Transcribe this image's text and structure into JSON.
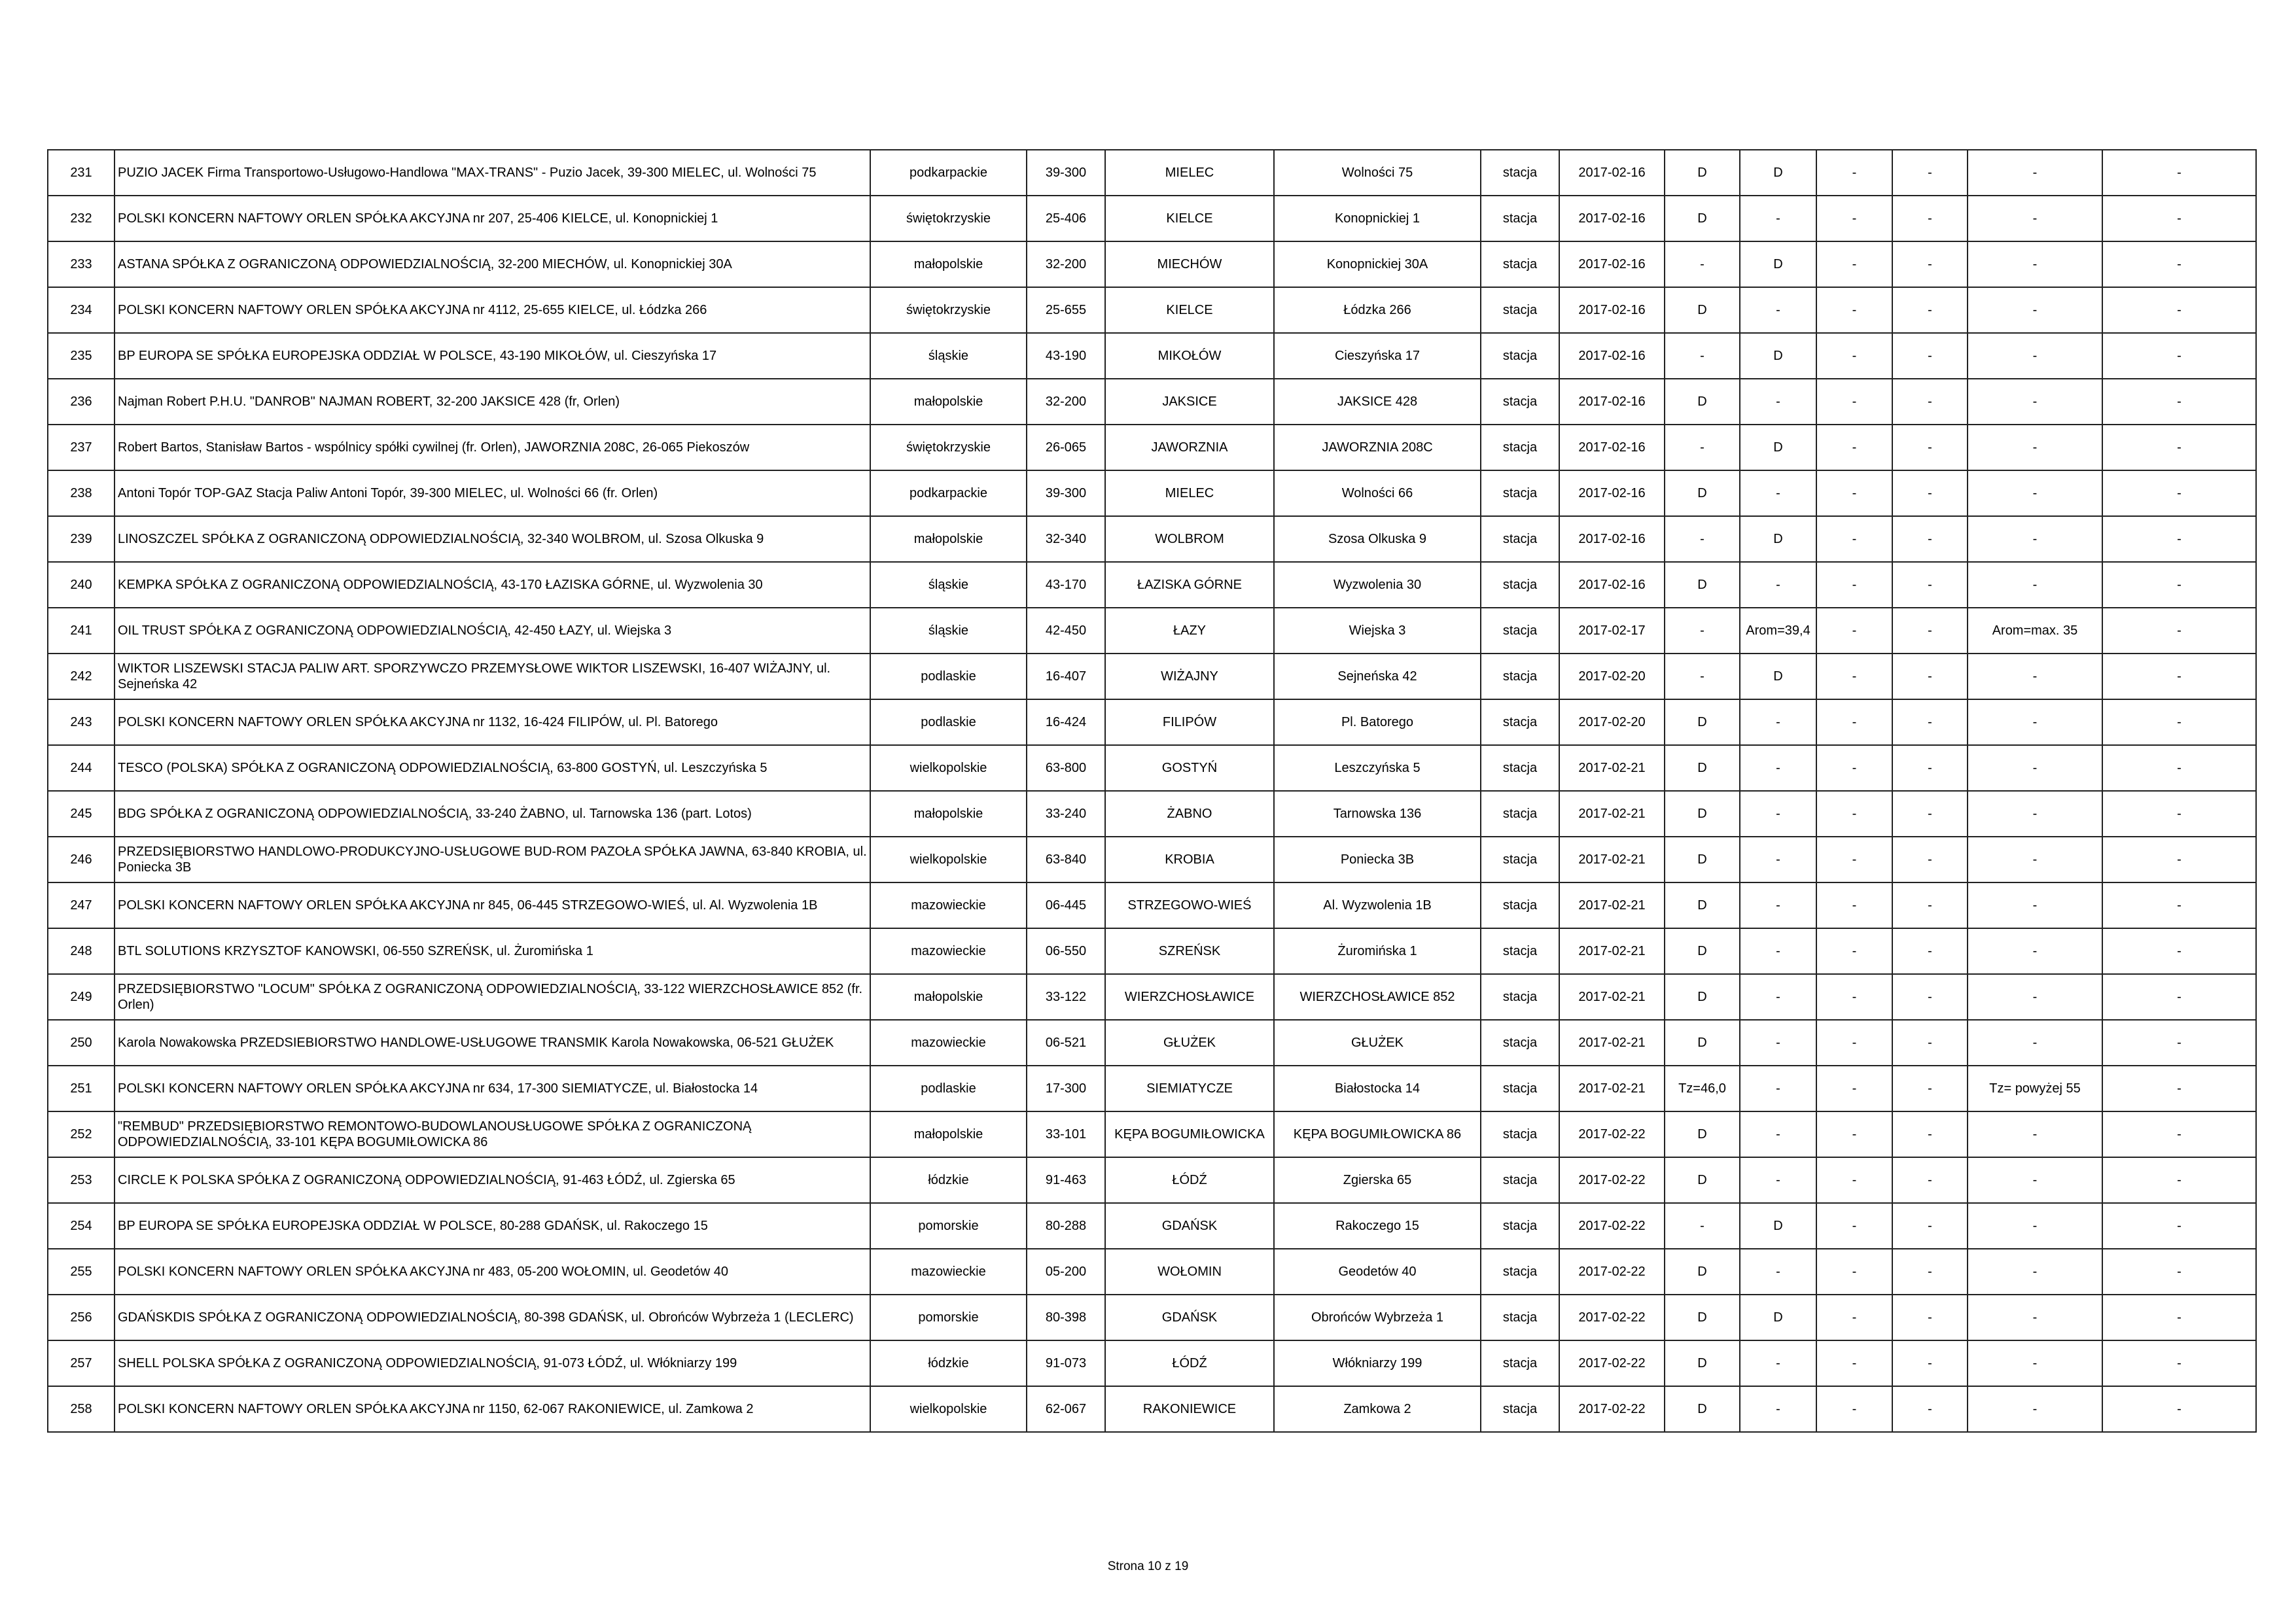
{
  "table": {
    "rows": [
      [
        "231",
        "PUZIO JACEK Firma Transportowo-Usługowo-Handlowa \"MAX-TRANS\" - Puzio Jacek, 39-300 MIELEC, ul. Wolności 75",
        "podkarpackie",
        "39-300",
        "MIELEC",
        "Wolności 75",
        "stacja",
        "2017-02-16",
        "D",
        "D",
        "-",
        "-",
        "-",
        "-"
      ],
      [
        "232",
        "POLSKI KONCERN NAFTOWY ORLEN SPÓŁKA AKCYJNA nr 207, 25-406 KIELCE, ul. Konopnickiej 1",
        "świętokrzyskie",
        "25-406",
        "KIELCE",
        "Konopnickiej 1",
        "stacja",
        "2017-02-16",
        "D",
        "-",
        "-",
        "-",
        "-",
        "-"
      ],
      [
        "233",
        "ASTANA SPÓŁKA Z OGRANICZONĄ ODPOWIEDZIALNOŚCIĄ, 32-200 MIECHÓW, ul. Konopnickiej 30A",
        "małopolskie",
        "32-200",
        "MIECHÓW",
        "Konopnickiej 30A",
        "stacja",
        "2017-02-16",
        "-",
        "D",
        "-",
        "-",
        "-",
        "-"
      ],
      [
        "234",
        "POLSKI KONCERN NAFTOWY ORLEN SPÓŁKA AKCYJNA nr 4112, 25-655 KIELCE, ul. Łódzka 266",
        "świętokrzyskie",
        "25-655",
        "KIELCE",
        "Łódzka 266",
        "stacja",
        "2017-02-16",
        "D",
        "-",
        "-",
        "-",
        "-",
        "-"
      ],
      [
        "235",
        "BP EUROPA SE SPÓŁKA EUROPEJSKA ODDZIAŁ W POLSCE, 43-190 MIKOŁÓW, ul. Cieszyńska 17",
        "śląskie",
        "43-190",
        "MIKOŁÓW",
        "Cieszyńska 17",
        "stacja",
        "2017-02-16",
        "-",
        "D",
        "-",
        "-",
        "-",
        "-"
      ],
      [
        "236",
        "Najman Robert P.H.U. \"DANROB\" NAJMAN ROBERT, 32-200 JAKSICE 428 (fr, Orlen)",
        "małopolskie",
        "32-200",
        "JAKSICE",
        "JAKSICE 428",
        "stacja",
        "2017-02-16",
        "D",
        "-",
        "-",
        "-",
        "-",
        "-"
      ],
      [
        "237",
        "Robert Bartos, Stanisław Bartos - wspólnicy spółki cywilnej (fr. Orlen), JAWORZNIA 208C, 26-065 Piekoszów",
        "świętokrzyskie",
        "26-065",
        "JAWORZNIA",
        "JAWORZNIA 208C",
        "stacja",
        "2017-02-16",
        "-",
        "D",
        "-",
        "-",
        "-",
        "-"
      ],
      [
        "238",
        "Antoni Topór TOP-GAZ Stacja Paliw Antoni Topór, 39-300 MIELEC, ul. Wolności 66 (fr. Orlen)",
        "podkarpackie",
        "39-300",
        "MIELEC",
        "Wolności 66",
        "stacja",
        "2017-02-16",
        "D",
        "-",
        "-",
        "-",
        "-",
        "-"
      ],
      [
        "239",
        "LINOSZCZEL SPÓŁKA Z OGRANICZONĄ ODPOWIEDZIALNOŚCIĄ, 32-340 WOLBROM, ul. Szosa Olkuska 9",
        "małopolskie",
        "32-340",
        "WOLBROM",
        "Szosa Olkuska 9",
        "stacja",
        "2017-02-16",
        "-",
        "D",
        "-",
        "-",
        "-",
        "-"
      ],
      [
        "240",
        "KEMPKA SPÓŁKA Z OGRANICZONĄ ODPOWIEDZIALNOŚCIĄ, 43-170 ŁAZISKA GÓRNE, ul. Wyzwolenia 30",
        "śląskie",
        "43-170",
        "ŁAZISKA GÓRNE",
        "Wyzwolenia 30",
        "stacja",
        "2017-02-16",
        "D",
        "-",
        "-",
        "-",
        "-",
        "-"
      ],
      [
        "241",
        "OIL TRUST SPÓŁKA Z OGRANICZONĄ ODPOWIEDZIALNOŚCIĄ, 42-450 ŁAZY, ul. Wiejska 3",
        "śląskie",
        "42-450",
        "ŁAZY",
        "Wiejska 3",
        "stacja",
        "2017-02-17",
        "-",
        "Arom=39,4",
        "-",
        "-",
        "Arom=max. 35",
        "-"
      ],
      [
        "242",
        "WIKTOR LISZEWSKI STACJA PALIW ART. SPORZYWCZO PRZEMYSŁOWE WIKTOR LISZEWSKI, 16-407 WIŻAJNY, ul. Sejneńska 42",
        "podlaskie",
        "16-407",
        "WIŻAJNY",
        "Sejneńska 42",
        "stacja",
        "2017-02-20",
        "-",
        "D",
        "-",
        "-",
        "-",
        "-"
      ],
      [
        "243",
        "POLSKI KONCERN NAFTOWY ORLEN SPÓŁKA AKCYJNA nr 1132, 16-424 FILIPÓW, ul. Pl. Batorego",
        "podlaskie",
        "16-424",
        "FILIPÓW",
        "Pl. Batorego",
        "stacja",
        "2017-02-20",
        "D",
        "-",
        "-",
        "-",
        "-",
        "-"
      ],
      [
        "244",
        "TESCO (POLSKA) SPÓŁKA Z OGRANICZONĄ ODPOWIEDZIALNOŚCIĄ, 63-800 GOSTYŃ, ul. Leszczyńska 5",
        "wielkopolskie",
        "63-800",
        "GOSTYŃ",
        "Leszczyńska 5",
        "stacja",
        "2017-02-21",
        "D",
        "-",
        "-",
        "-",
        "-",
        "-"
      ],
      [
        "245",
        "BDG SPÓŁKA Z OGRANICZONĄ ODPOWIEDZIALNOŚCIĄ, 33-240 ŻABNO, ul. Tarnowska 136 (part. Lotos)",
        "małopolskie",
        "33-240",
        "ŻABNO",
        "Tarnowska 136",
        "stacja",
        "2017-02-21",
        "D",
        "-",
        "-",
        "-",
        "-",
        "-"
      ],
      [
        "246",
        "PRZEDSIĘBIORSTWO HANDLOWO-PRODUKCYJNO-USŁUGOWE BUD-ROM PAZOŁA SPÓŁKA JAWNA, 63-840 KROBIA, ul. Poniecka 3B",
        "wielkopolskie",
        "63-840",
        "KROBIA",
        "Poniecka 3B",
        "stacja",
        "2017-02-21",
        "D",
        "-",
        "-",
        "-",
        "-",
        "-"
      ],
      [
        "247",
        "POLSKI KONCERN NAFTOWY ORLEN SPÓŁKA AKCYJNA nr 845, 06-445 STRZEGOWO-WIEŚ, ul. Al. Wyzwolenia 1B",
        "mazowieckie",
        "06-445",
        "STRZEGOWO-WIEŚ",
        "Al. Wyzwolenia 1B",
        "stacja",
        "2017-02-21",
        "D",
        "-",
        "-",
        "-",
        "-",
        "-"
      ],
      [
        "248",
        "BTL SOLUTIONS KRZYSZTOF KANOWSKI, 06-550 SZREŃSK, ul. Żuromińska 1",
        "mazowieckie",
        "06-550",
        "SZREŃSK",
        "Żuromińska 1",
        "stacja",
        "2017-02-21",
        "D",
        "-",
        "-",
        "-",
        "-",
        "-"
      ],
      [
        "249",
        "PRZEDSIĘBIORSTWO \"LOCUM\" SPÓŁKA Z OGRANICZONĄ ODPOWIEDZIALNOŚCIĄ, 33-122 WIERZCHOSŁAWICE 852 (fr. Orlen)",
        "małopolskie",
        "33-122",
        "WIERZCHOSŁAWICE",
        "WIERZCHOSŁAWICE 852",
        "stacja",
        "2017-02-21",
        "D",
        "-",
        "-",
        "-",
        "-",
        "-"
      ],
      [
        "250",
        "Karola Nowakowska PRZEDSIEBIORSTWO HANDLOWE-USŁUGOWE TRANSMIK Karola Nowakowska, 06-521 GŁUŻEK",
        "mazowieckie",
        "06-521",
        "GŁUŻEK",
        "GŁUŻEK",
        "stacja",
        "2017-02-21",
        "D",
        "-",
        "-",
        "-",
        "-",
        "-"
      ],
      [
        "251",
        "POLSKI KONCERN NAFTOWY ORLEN SPÓŁKA AKCYJNA nr 634, 17-300 SIEMIATYCZE, ul. Białostocka 14",
        "podlaskie",
        "17-300",
        "SIEMIATYCZE",
        "Białostocka 14",
        "stacja",
        "2017-02-21",
        "Tz=46,0",
        "-",
        "-",
        "-",
        "Tz= powyżej 55",
        "-"
      ],
      [
        "252",
        "\"REMBUD\" PRZEDSIĘBIORSTWO REMONTOWO-BUDOWLANOUSŁUGOWE SPÓŁKA Z OGRANICZONĄ ODPOWIEDZIALNOŚCIĄ, 33-101 KĘPA BOGUMIŁOWICKA 86",
        "małopolskie",
        "33-101",
        "KĘPA BOGUMIŁOWICKA",
        "KĘPA BOGUMIŁOWICKA 86",
        "stacja",
        "2017-02-22",
        "D",
        "-",
        "-",
        "-",
        "-",
        "-"
      ],
      [
        "253",
        "CIRCLE K POLSKA SPÓŁKA Z OGRANICZONĄ ODPOWIEDZIALNOŚCIĄ, 91-463 ŁÓDŹ, ul. Zgierska 65",
        "łódzkie",
        "91-463",
        "ŁÓDŹ",
        "Zgierska 65",
        "stacja",
        "2017-02-22",
        "D",
        "-",
        "-",
        "-",
        "-",
        "-"
      ],
      [
        "254",
        "BP EUROPA SE SPÓŁKA EUROPEJSKA ODDZIAŁ W POLSCE, 80-288 GDAŃSK, ul. Rakoczego 15",
        "pomorskie",
        "80-288",
        "GDAŃSK",
        "Rakoczego 15",
        "stacja",
        "2017-02-22",
        "-",
        "D",
        "-",
        "-",
        "-",
        "-"
      ],
      [
        "255",
        "POLSKI KONCERN NAFTOWY ORLEN SPÓŁKA AKCYJNA nr 483, 05-200 WOŁOMIN, ul. Geodetów 40",
        "mazowieckie",
        "05-200",
        "WOŁOMIN",
        "Geodetów 40",
        "stacja",
        "2017-02-22",
        "D",
        "-",
        "-",
        "-",
        "-",
        "-"
      ],
      [
        "256",
        "GDAŃSKDIS SPÓŁKA Z OGRANICZONĄ ODPOWIEDZIALNOŚCIĄ, 80-398 GDAŃSK, ul. Obrońców Wybrzeża 1 (LECLERC)",
        "pomorskie",
        "80-398",
        "GDAŃSK",
        "Obrońców Wybrzeża 1",
        "stacja",
        "2017-02-22",
        "D",
        "D",
        "-",
        "-",
        "-",
        "-"
      ],
      [
        "257",
        "SHELL POLSKA SPÓŁKA Z OGRANICZONĄ ODPOWIEDZIALNOŚCIĄ, 91-073 ŁÓDŹ, ul. Włókniarzy 199",
        "łódzkie",
        "91-073",
        "ŁÓDŹ",
        "Włókniarzy 199",
        "stacja",
        "2017-02-22",
        "D",
        "-",
        "-",
        "-",
        "-",
        "-"
      ],
      [
        "258",
        "POLSKI KONCERN NAFTOWY ORLEN SPÓŁKA AKCYJNA nr 1150, 62-067 RAKONIEWICE, ul. Zamkowa 2",
        "wielkopolskie",
        "62-067",
        "RAKONIEWICE",
        "Zamkowa 2",
        "stacja",
        "2017-02-22",
        "D",
        "-",
        "-",
        "-",
        "-",
        "-"
      ]
    ]
  },
  "footer": {
    "page": "Strona 10 z 19"
  }
}
